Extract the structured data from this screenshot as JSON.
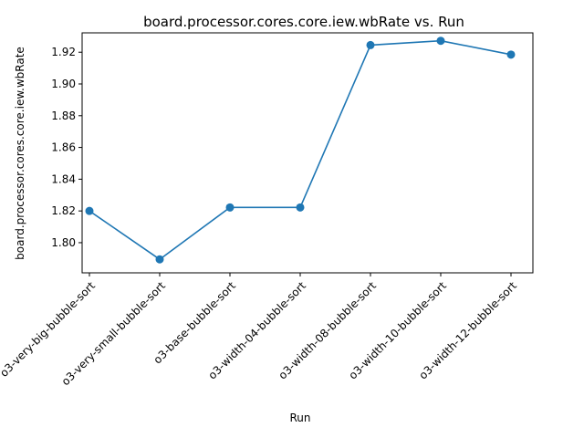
{
  "chart_data": {
    "type": "line",
    "title": "board.processor.cores.core.iew.wbRate vs. Run",
    "xlabel": "Run",
    "ylabel": "board.processor.cores.core.iew.wbRate",
    "categories": [
      "o3-very-big-bubble-sort",
      "o3-very-small-bubble-sort",
      "o3-base-bubble-sort",
      "o3-width-04-bubble-sort",
      "o3-width-08-bubble-sort",
      "o3-width-10-bubble-sort",
      "o3-width-12-bubble-sort"
    ],
    "series": [
      {
        "values": [
          1.82,
          1.7895,
          1.8222,
          1.8222,
          1.9245,
          1.9272,
          1.9185
        ],
        "color": "#1f77b4"
      }
    ],
    "ylim": [
      1.781,
      1.9322
    ],
    "yticks": [
      1.8,
      1.82,
      1.84,
      1.86,
      1.88,
      1.9,
      1.92
    ],
    "grid": false,
    "legend": "none",
    "marker": "circle"
  }
}
